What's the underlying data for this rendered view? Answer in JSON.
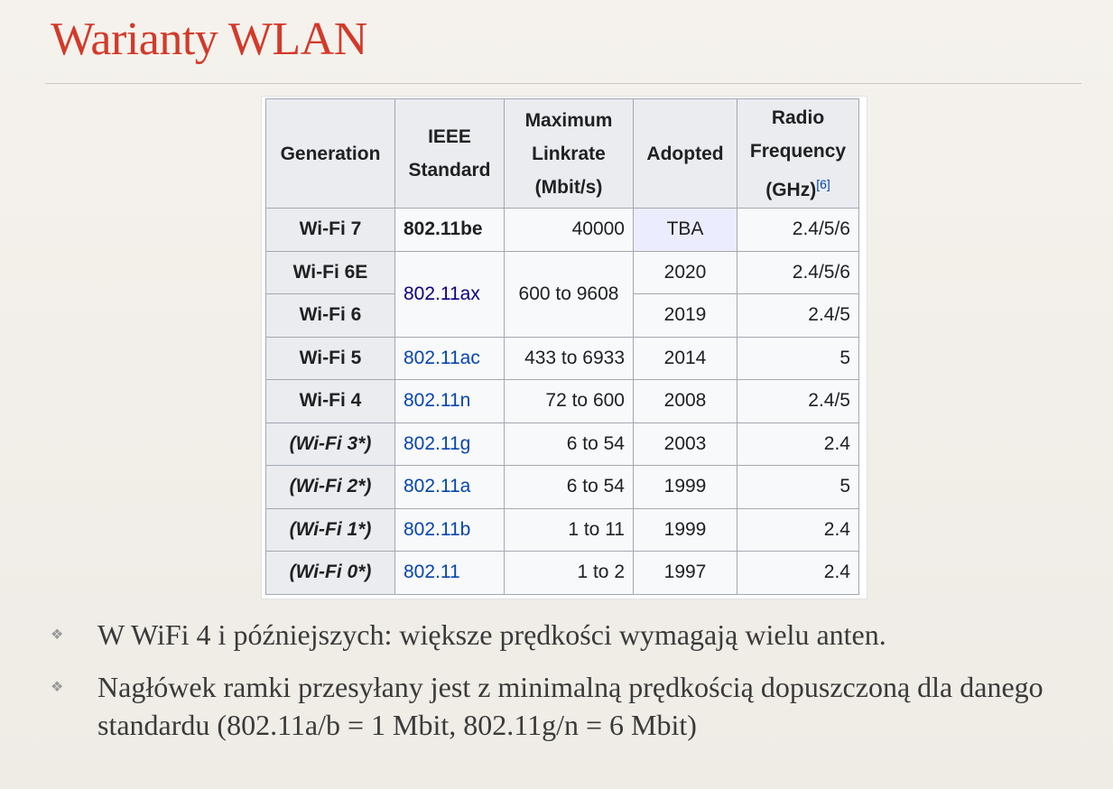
{
  "slide": {
    "title": "Warianty WLAN"
  },
  "table": {
    "headers": {
      "generation": "Generation",
      "ieee_line1": "IEEE",
      "ieee_line2": "Standard",
      "rate_line1": "Maximum",
      "rate_line2": "Linkrate",
      "rate_line3": "(Mbit/s)",
      "adopted": "Adopted",
      "freq_line1": "Radio",
      "freq_line2": "Frequency",
      "freq_line3": "(GHz)",
      "freq_ref": "[6]"
    },
    "rows": [
      {
        "generation": "Wi-Fi 7",
        "standard": "802.11be",
        "rate": "40000",
        "adopted": "TBA",
        "freq": "2.4/5/6"
      },
      {
        "generation": "Wi-Fi 6E",
        "standard": "802.11ax",
        "rate": "600 to 9608",
        "adopted": "2020",
        "freq": "2.4/5/6"
      },
      {
        "generation": "Wi-Fi 6",
        "adopted": "2019",
        "freq": "2.4/5"
      },
      {
        "generation": "Wi-Fi 5",
        "standard": "802.11ac",
        "rate": "433 to 6933",
        "adopted": "2014",
        "freq": "5"
      },
      {
        "generation": "Wi-Fi 4",
        "standard": "802.11n",
        "rate": "72 to 600",
        "adopted": "2008",
        "freq": "2.4/5"
      },
      {
        "generation": "(Wi-Fi 3*)",
        "standard": "802.11g",
        "rate": "6 to 54",
        "adopted": "2003",
        "freq": "2.4"
      },
      {
        "generation": "(Wi-Fi 2*)",
        "standard": "802.11a",
        "rate": "6 to 54",
        "adopted": "1999",
        "freq": "5"
      },
      {
        "generation": "(Wi-Fi 1*)",
        "standard": "802.11b",
        "rate": "1 to 11",
        "adopted": "1999",
        "freq": "2.4"
      },
      {
        "generation": "(Wi-Fi 0*)",
        "standard": "802.11",
        "rate": "1 to 2",
        "adopted": "1997",
        "freq": "2.4"
      }
    ]
  },
  "bullets": {
    "marker": "❖",
    "items": [
      "W WiFi 4 i późniejszych: większe prędkości wymagają wielu anten.",
      "Nagłówek ramki przesyłany jest z minimalną prędkością dopuszczoną dla danego standardu (802.11a/b = 1 Mbit, 802.11g/n = 6 Mbit)"
    ]
  },
  "colors": {
    "title": "#d23a2a",
    "link": "#0645ad",
    "link_visited": "#0b0080",
    "header_bg": "#eaecf0",
    "cell_bg": "#f8f9fa",
    "tba_bg": "#ececff"
  }
}
